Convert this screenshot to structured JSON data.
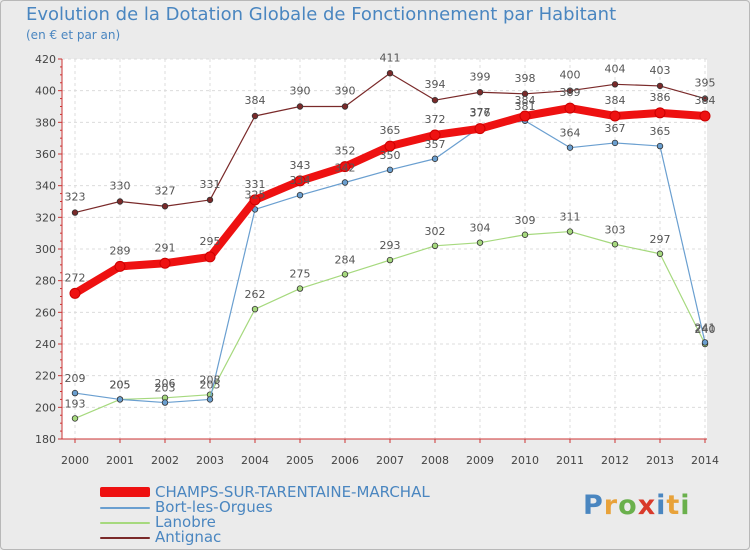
{
  "title": "Evolution de la Dotation Globale de Fonctionnement par Habitant",
  "subtitle": "(en € et par an)",
  "logo": {
    "text": "Proxiti",
    "letter_colors": [
      "#4a86c0",
      "#e8a23a",
      "#6ab04c",
      "#d93a2b",
      "#4a86c0",
      "#e8a23a",
      "#6ab04c"
    ]
  },
  "chart_data": {
    "type": "line",
    "title": "Evolution de la Dotation Globale de Fonctionnement par Habitant",
    "subtitle": "(en € et par an)",
    "xlabel": "",
    "ylabel": "",
    "x": [
      "2000",
      "2001",
      "2002",
      "2003",
      "2004",
      "2005",
      "2006",
      "2007",
      "2008",
      "2009",
      "2010",
      "2011",
      "2012",
      "2013",
      "2014"
    ],
    "yticks": [
      180,
      200,
      220,
      240,
      260,
      280,
      300,
      320,
      340,
      360,
      380,
      400,
      420
    ],
    "ylim": [
      180,
      420
    ],
    "grid": true,
    "legend_position": "bottom-left",
    "series": [
      {
        "name": "Antignac",
        "color": "#7a2a2a",
        "width": 1.2,
        "values": [
          323,
          330,
          327,
          331,
          384,
          390,
          390,
          411,
          394,
          399,
          398,
          400,
          404,
          403,
          395
        ]
      },
      {
        "name": "Lanobre",
        "color": "#a6d97e",
        "width": 1.2,
        "values": [
          193,
          205,
          206,
          208,
          262,
          275,
          284,
          293,
          302,
          304,
          309,
          311,
          303,
          297,
          240
        ]
      },
      {
        "name": "Bort-les-Orgues",
        "color": "#6a9fd0",
        "width": 1.2,
        "values": [
          209,
          205,
          203,
          205,
          325,
          334,
          342,
          350,
          357,
          377,
          381,
          364,
          367,
          365,
          241
        ]
      },
      {
        "name": "CHAMPS-SUR-TARENTAINE-MARCHAL",
        "color": "#ee1111",
        "width": 8,
        "values": [
          272,
          289,
          291,
          295,
          331,
          343,
          352,
          365,
          372,
          376,
          384,
          389,
          384,
          386,
          384
        ]
      }
    ]
  }
}
